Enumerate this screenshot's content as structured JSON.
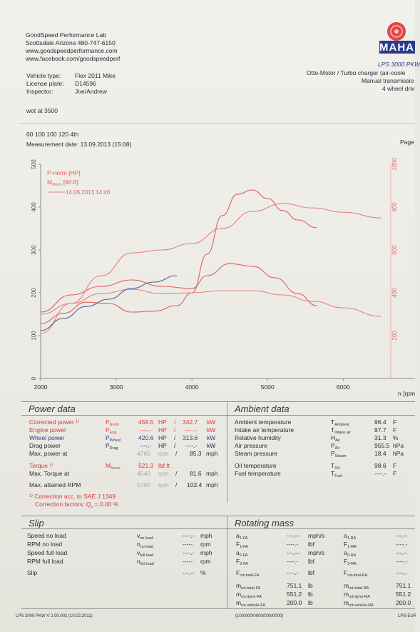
{
  "header": {
    "lab_name": "GoodSpeed Performance Lab",
    "lab_location": "Scottsdale Arizona 480-747-6150",
    "website": "www.goodspeedperformance.com",
    "facebook": "www.facebook.com/goodspeedperf",
    "logo_text": "MAHA",
    "device": "LPS 3000 PKW",
    "engine_type": "Otto-Motor / Turbo charger (air-coole",
    "transmission": "Manual transmissio",
    "drive": "4 wheel driv",
    "page_label": "Page"
  },
  "vehicle": {
    "type_label": "Vehicle type:",
    "type_value": "Flex 2011 Mike",
    "plate_label": "License plate:",
    "plate_value": "D14596",
    "inspector_label": "Inspector:",
    "inspector_value": "Joe/Andrew"
  },
  "notes": {
    "line1": "wot at 3500",
    "line2": "60 100 100 120 4th",
    "measurement_date": "Measurement date: 13.09.2013 (15:08)"
  },
  "chart_data": {
    "type": "line",
    "title": "",
    "legend": [
      "P-norm [HP]",
      "M",
      "14.06.2013 14:46"
    ],
    "legend_sub": "Norm",
    "legend_unit": " [lbf.ft]",
    "x_ticks": [
      "2000",
      "3000",
      "4000",
      "5000",
      "6000"
    ],
    "xlabel": "n [rpm",
    "xlim": [
      2000,
      6600
    ],
    "y_left_ticks": [
      "0",
      "100",
      "200",
      "300",
      "400",
      "500"
    ],
    "y_left_lim": [
      0,
      500
    ],
    "y_right_ticks": [
      "200",
      "400",
      "600",
      "800",
      "1000"
    ],
    "y_right_lim": [
      0,
      1000
    ],
    "series": [
      {
        "name": "P-norm [HP]",
        "color": "#e25d5d",
        "axis": "left",
        "x": [
          2000,
          2300,
          2600,
          2900,
          3200,
          3500,
          3800,
          4000,
          4200,
          4400,
          4600,
          4800,
          5000,
          5200,
          5400,
          5650
        ],
        "y": [
          128,
          152,
          178,
          175,
          155,
          157,
          170,
          200,
          290,
          380,
          430,
          440,
          420,
          392,
          370,
          352
        ]
      },
      {
        "name": "M",
        "color": "#e25d5d",
        "axis": "left",
        "x": [
          2000,
          2400,
          2800,
          3200,
          3600,
          4000,
          4200,
          4500,
          4800,
          5100,
          5400,
          5650
        ],
        "y": [
          155,
          195,
          215,
          230,
          215,
          210,
          240,
          268,
          262,
          235,
          198,
          170
        ]
      },
      {
        "name": "14.06.2013 14:46",
        "color": "#e88080",
        "axis": "left",
        "x": [
          2000,
          2400,
          2800,
          3200,
          3600,
          4000,
          4400,
          4800,
          5200,
          5600,
          6000,
          6500
        ],
        "y": [
          105,
          175,
          240,
          293,
          300,
          315,
          350,
          390,
          408,
          398,
          388,
          375
        ]
      },
      {
        "name": "",
        "color": "#e88080",
        "axis": "left",
        "x": [
          2000,
          2400,
          2800,
          3200,
          3600,
          4000,
          4400,
          4800,
          5200,
          5600,
          6000,
          6500
        ],
        "y": [
          150,
          175,
          198,
          208,
          198,
          200,
          205,
          205,
          195,
          180,
          165,
          145
        ]
      },
      {
        "name": "",
        "color": "#5a5a9a",
        "axis": "left",
        "x": [
          2000,
          2300,
          2600,
          2900,
          3200,
          3500,
          3800
        ],
        "y": [
          112,
          140,
          168,
          185,
          210,
          225,
          240
        ]
      }
    ]
  },
  "power": {
    "title": "Power data",
    "corrected_label": "Corrected power ¹⁾",
    "corrected_sym": "P",
    "corrected_sub": "Norm",
    "corrected_hp": "459.5",
    "corrected_kw": "342.7",
    "engine_label": "Engine power",
    "engine_sym": "P",
    "engine_sub": "Eng",
    "engine_hp": "----.-",
    "engine_kw": "----.-",
    "wheel_label": "Wheel power",
    "wheel_sym": "P",
    "wheel_sub": "Wheel",
    "wheel_hp": "420.6",
    "wheel_kw": "313.6",
    "drag_label": "Drag power",
    "drag_sym": "P",
    "drag_sub": "Drag",
    "drag_hp": "----.-",
    "drag_kw": "----.-",
    "max_power_label": "Max. power at",
    "max_power_rpm": "4760",
    "max_power_mph": "85.3",
    "torque_label": "Torque ¹⁾",
    "torque_sym": "M",
    "torque_sub": "Norm",
    "torque_value": "521.3",
    "torque_unit": "lbf.ft",
    "max_torque_label": "Max. Torque at",
    "max_torque_rpm": "4540",
    "max_torque_mph": "81.6",
    "max_speed_label": "Max. attained RPM",
    "max_speed_rpm": "5700",
    "max_speed_mph": "102.4",
    "correction_note": "¹⁾ Correction acc. to SAE J 1349",
    "correction_factor_label": "Correction factors: Q",
    "correction_factor_sub": "v",
    "correction_factor_value": "=  0.00 %",
    "unit_hp": "HP",
    "unit_kw": "kW",
    "unit_rpm": "rpm",
    "unit_mph": "mph",
    "sep": "/"
  },
  "ambient": {
    "title": "Ambient data",
    "rows": [
      {
        "label": "Ambient temperature",
        "sym": "T",
        "sub": "Ambient",
        "value": "96.4",
        "unit": "F"
      },
      {
        "label": "Intake air temperature",
        "sym": "T",
        "sub": "Intake air",
        "value": "97.7",
        "unit": "F"
      },
      {
        "label": "Relative humidity",
        "sym": "H",
        "sub": "Air",
        "value": "31.3",
        "unit": "%"
      },
      {
        "label": "Air pressure",
        "sym": "P",
        "sub": "Air",
        "value": "955.5",
        "unit": "hPa"
      },
      {
        "label": "Steam pressure",
        "sym": "P",
        "sub": "Steam",
        "value": "18.4",
        "unit": "hPa"
      },
      {
        "label": "Oil temperature",
        "sym": "T",
        "sub": "Oil",
        "value": "98.6",
        "unit": "F"
      },
      {
        "label": "Fuel temperature",
        "sym": "T",
        "sub": "Fuel",
        "value": "----.-",
        "unit": "F"
      }
    ]
  },
  "slip": {
    "title": "Slip",
    "rows": [
      {
        "label": "Speed no load",
        "sym": "v",
        "sub": "no load",
        "value": "----.-",
        "unit": "mph"
      },
      {
        "label": "RPM no load",
        "sym": "n",
        "sub": "no load",
        "value": "-----",
        "unit": "rpm"
      },
      {
        "label": "Speed full load",
        "sym": "v",
        "sub": "full load",
        "value": "----.-",
        "unit": "mph"
      },
      {
        "label": "RPM full load",
        "sym": "n",
        "sub": "full load",
        "value": "-----",
        "unit": "rpm"
      },
      {
        "label": "Slip",
        "sym": "",
        "sub": "",
        "value": "---.--",
        "unit": "%"
      }
    ]
  },
  "rotating": {
    "title": "Rotating mass",
    "left": [
      {
        "sym": "a",
        "sub": "1-FA",
        "value": "---.---",
        "unit": "mph/s"
      },
      {
        "sym": "F",
        "sub": "1-FA",
        "value": "----.-",
        "unit": "lbf"
      },
      {
        "sym": "a",
        "sub": "2-FA",
        "value": "---.---",
        "unit": "mph/s"
      },
      {
        "sym": "F",
        "sub": "2-FA",
        "value": "----.-",
        "unit": "lbf"
      },
      {
        "sym": "F",
        "sub": "rot-total-FA",
        "value": "----.-",
        "unit": "lbf"
      },
      {
        "sym": "m",
        "sub": "rot-total-FA",
        "value": "751.1",
        "unit": "lb"
      },
      {
        "sym": "m",
        "sub": "rot-dyno-FA",
        "value": "551.2",
        "unit": "lb"
      },
      {
        "sym": "m",
        "sub": "rot-vehicle-FA",
        "value": "200.0",
        "unit": "lb"
      }
    ],
    "right": [
      {
        "sym": "a",
        "sub": "1-RA",
        "value": "---.--"
      },
      {
        "sym": "F",
        "sub": "1-RA",
        "value": "----.-"
      },
      {
        "sym": "a",
        "sub": "2-RA",
        "value": "---.--"
      },
      {
        "sym": "F",
        "sub": "2-RA",
        "value": "----.-"
      },
      {
        "sym": "F",
        "sub": "rot-total-RA",
        "value": "----.-"
      },
      {
        "sym": "m",
        "sub": "rot-total-RA",
        "value": "751.1"
      },
      {
        "sym": "m",
        "sub": "rot-dyno-RA",
        "value": "551.2"
      },
      {
        "sym": "m",
        "sub": "rot-vehicle-RA",
        "value": "200.0"
      }
    ]
  },
  "footer": {
    "version": "LPS 3000 PKW V 2.00.002 (10.02.2011)",
    "code": "(100/000/0000/000/0000)",
    "right": "LPS-EUR"
  }
}
